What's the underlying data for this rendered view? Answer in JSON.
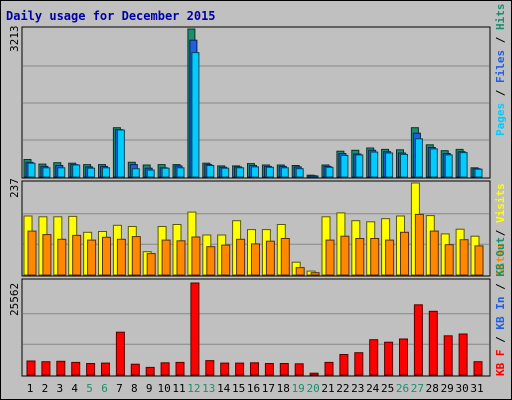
{
  "chart_data": [
    {
      "type": "bar",
      "title": "Daily usage for December 2015",
      "categories": [
        "1",
        "2",
        "3",
        "4",
        "5",
        "6",
        "7",
        "8",
        "9",
        "10",
        "11",
        "12",
        "13",
        "14",
        "15",
        "16",
        "17",
        "18",
        "19",
        "20",
        "21",
        "22",
        "23",
        "24",
        "25",
        "26",
        "27",
        "28",
        "29",
        "30",
        "31"
      ],
      "weekend_days": [
        "5",
        "6",
        "12",
        "13",
        "19",
        "20",
        "26",
        "27"
      ],
      "ymax_label": "3213",
      "ylim": [
        0,
        3213
      ],
      "legend": [
        "Pages",
        "Files",
        "Hits"
      ],
      "series": [
        {
          "name": "Hits",
          "color": "#1a8f6e",
          "values": [
            380,
            280,
            310,
            300,
            270,
            270,
            1070,
            320,
            260,
            270,
            270,
            3213,
            300,
            240,
            240,
            290,
            260,
            260,
            250,
            40,
            260,
            560,
            580,
            630,
            600,
            590,
            1070,
            700,
            570,
            600,
            200
          ]
        },
        {
          "name": "Files",
          "color": "#2060e0",
          "values": [
            320,
            230,
            250,
            270,
            220,
            230,
            1030,
            270,
            190,
            200,
            240,
            2970,
            270,
            210,
            220,
            250,
            230,
            230,
            220,
            30,
            230,
            510,
            500,
            580,
            550,
            520,
            950,
            640,
            510,
            550,
            180
          ]
        },
        {
          "name": "Pages",
          "color": "#00ccff",
          "values": [
            300,
            200,
            200,
            260,
            190,
            200,
            1020,
            180,
            150,
            190,
            200,
            2700,
            250,
            190,
            200,
            220,
            210,
            200,
            180,
            20,
            210,
            470,
            480,
            540,
            520,
            490,
            830,
            610,
            480,
            530,
            170
          ]
        }
      ]
    },
    {
      "type": "bar",
      "ymax_label": "237",
      "ylim": [
        0,
        237
      ],
      "legend": [
        "Visits",
        "Sites"
      ],
      "series": [
        {
          "name": "Visits",
          "color": "#ffff00",
          "values": [
            152,
            150,
            150,
            151,
            110,
            112,
            128,
            125,
            60,
            125,
            130,
            162,
            103,
            103,
            140,
            117,
            117,
            130,
            33,
            10,
            150,
            160,
            140,
            137,
            145,
            152,
            237,
            153,
            106,
            118,
            100
          ]
        },
        {
          "name": "Sites",
          "color": "#ff8800",
          "values": [
            113,
            104,
            92,
            102,
            90,
            97,
            92,
            99,
            55,
            90,
            88,
            98,
            73,
            77,
            92,
            80,
            87,
            94,
            19,
            6,
            90,
            100,
            94,
            94,
            90,
            110,
            156,
            113,
            78,
            91,
            75
          ]
        }
      ]
    },
    {
      "type": "bar",
      "ymax_label": "25562",
      "ylim": [
        0,
        25562
      ],
      "legend": [
        "KB F",
        "KB In",
        "KB Out"
      ],
      "series": [
        {
          "name": "KB F",
          "color": "#ff0000",
          "values": [
            3900,
            3700,
            3800,
            3500,
            3200,
            3300,
            11900,
            3000,
            2100,
            3400,
            3500,
            25562,
            4000,
            3300,
            3300,
            3400,
            3200,
            3200,
            3100,
            500,
            3500,
            5700,
            6200,
            9800,
            9100,
            10000,
            19500,
            17700,
            10900,
            11400,
            3700
          ]
        }
      ]
    }
  ]
}
